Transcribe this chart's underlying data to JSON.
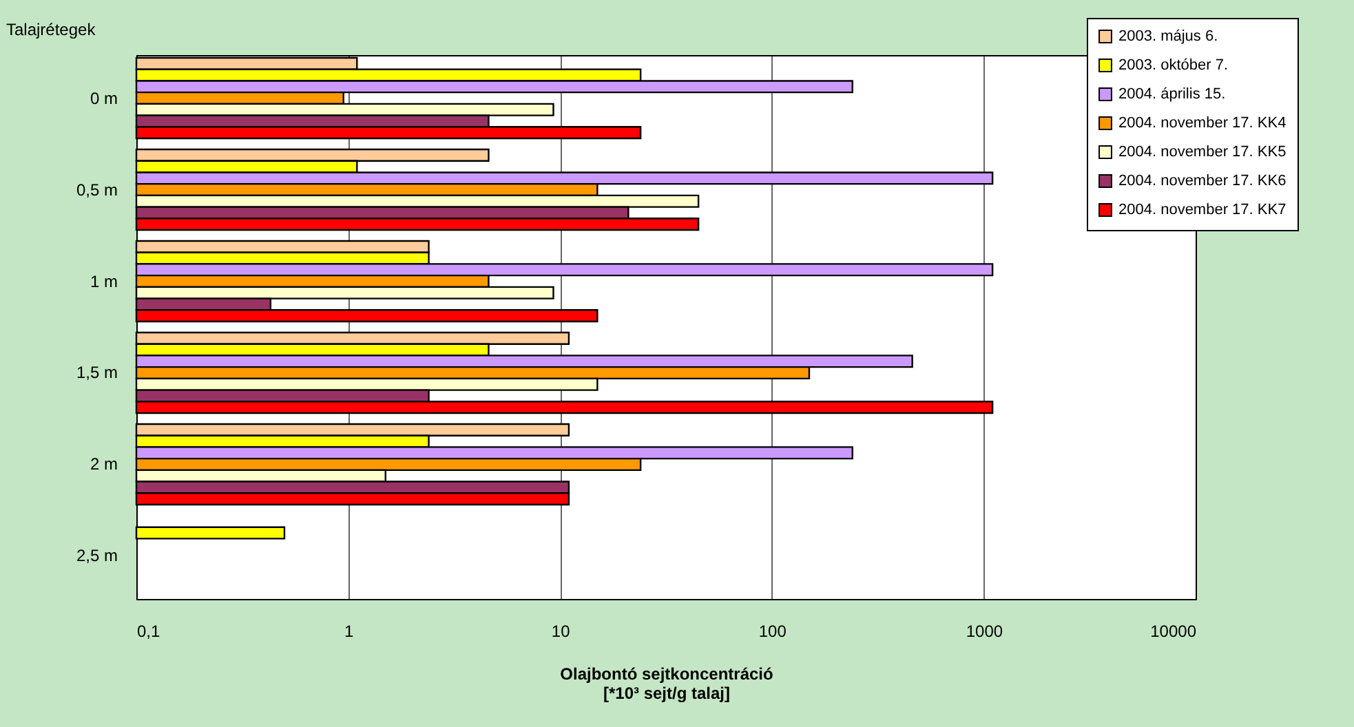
{
  "chart_data": {
    "type": "bar",
    "orientation": "horizontal",
    "ylabel": "Talajrétegek",
    "xlabel": "Olajbontó sejtkoncentráció\n[*10³ sejt/g talaj]",
    "categories": [
      "0 m",
      "0,5 m",
      "1 m",
      "1,5 m",
      "2 m",
      "2,5 m"
    ],
    "log": "x",
    "xlim": [
      0.1,
      10000
    ],
    "xticks": [
      {
        "value": 0.1,
        "label": "0,1"
      },
      1,
      10,
      100,
      1000,
      10000
    ],
    "grid": "x",
    "legend": "top right",
    "series": [
      {
        "name": "2003. május 6.",
        "color": "#ffcc99",
        "values": [
          1.1,
          4.6,
          2.4,
          11,
          11,
          null
        ]
      },
      {
        "name": "2003. október 7.",
        "color": "#ffff00",
        "values": [
          24,
          1.1,
          2.4,
          4.6,
          2.4,
          0.5
        ]
      },
      {
        "name": "2004. április 15.",
        "color": "#cc99ff",
        "values": [
          240,
          1100,
          1100,
          460,
          240,
          null
        ]
      },
      {
        "name": "2004. november 17. KK4",
        "color": "#ff9900",
        "values": [
          0.95,
          15,
          4.6,
          150,
          24,
          null
        ]
      },
      {
        "name": "2004. november 17. KK5",
        "color": "#ffffcc",
        "values": [
          9.3,
          45,
          9.3,
          15,
          1.5,
          null
        ]
      },
      {
        "name": "2004. november 17. KK6",
        "color": "#993366",
        "values": [
          4.6,
          21,
          0.43,
          2.4,
          11,
          null
        ]
      },
      {
        "name": "2004. november 17. KK7",
        "color": "#ff0000",
        "values": [
          24,
          45,
          15,
          1100,
          11,
          null
        ]
      }
    ]
  }
}
